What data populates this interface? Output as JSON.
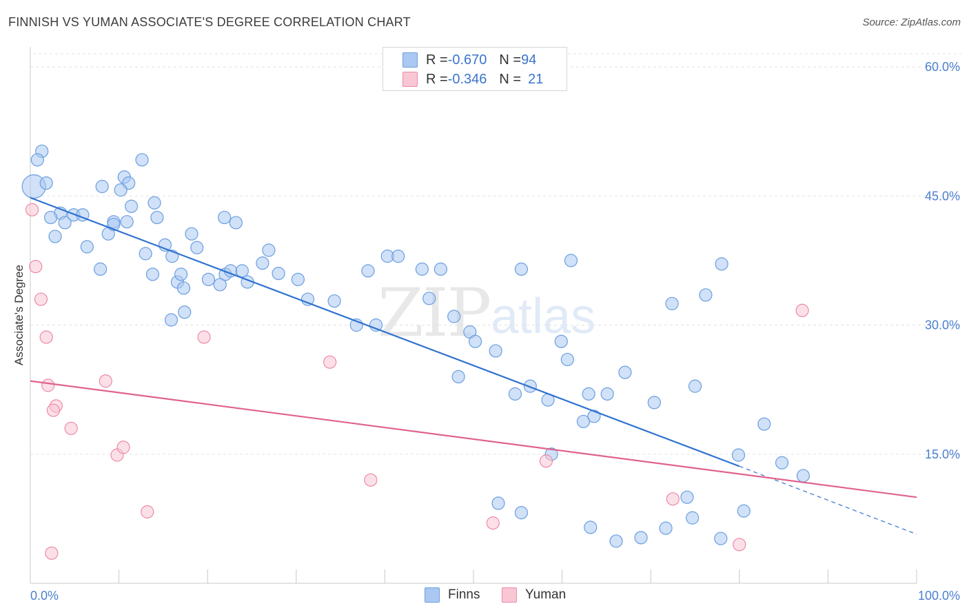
{
  "title": "FINNISH VS YUMAN ASSOCIATE'S DEGREE CORRELATION CHART",
  "source": "Source: ZipAtlas.com",
  "watermark": {
    "zip": "ZIP",
    "atlas": "atlas"
  },
  "legend": {
    "rows": [
      {
        "r_label": "R = ",
        "r_value": "-0.670",
        "n_label": "N = ",
        "n_value": "94",
        "color": "#aac8f2",
        "border": "#6a9edf"
      },
      {
        "r_label": "R = ",
        "r_value": "-0.346",
        "n_label": "N = ",
        "n_value": "21",
        "color": "#f9c6d4",
        "border": "#ec89a6"
      }
    ]
  },
  "bottom_legend": [
    {
      "label": "Finns",
      "color": "#aac8f2",
      "border": "#6a9edf"
    },
    {
      "label": "Yuman",
      "color": "#f9c6d4",
      "border": "#ec89a6"
    }
  ],
  "chart_data": {
    "type": "scatter",
    "title": "FINNISH VS YUMAN ASSOCIATE'S DEGREE CORRELATION CHART",
    "xlabel": "",
    "ylabel": "Associate's Degree",
    "xlim": [
      0,
      100
    ],
    "ylim": [
      0,
      60
    ],
    "x_tick_labels": [
      "0.0%",
      "100.0%"
    ],
    "y_ticks": [
      15,
      30,
      45,
      60
    ],
    "y_tick_labels": [
      "15.0%",
      "30.0%",
      "45.0%",
      "60.0%"
    ],
    "grid": true,
    "legend_position": "top-center",
    "series": [
      {
        "name": "Finns",
        "color": "#6a9edf",
        "fill": "#aac8f2",
        "points": [
          [
            0.4,
            46.1
          ],
          [
            1.3,
            50.2
          ],
          [
            0.8,
            49.2
          ],
          [
            1.8,
            46.5
          ],
          [
            3.4,
            43.0
          ],
          [
            2.3,
            42.5
          ],
          [
            3.9,
            41.9
          ],
          [
            2.8,
            40.3
          ],
          [
            4.9,
            42.8
          ],
          [
            5.9,
            42.8
          ],
          [
            6.4,
            39.1
          ],
          [
            8.1,
            46.1
          ],
          [
            8.8,
            40.6
          ],
          [
            7.9,
            36.5
          ],
          [
            9.4,
            42.0
          ],
          [
            10.9,
            42.0
          ],
          [
            11.4,
            43.8
          ],
          [
            9.4,
            41.7
          ],
          [
            10.6,
            47.2
          ],
          [
            11.1,
            46.5
          ],
          [
            10.2,
            45.7
          ],
          [
            12.6,
            49.2
          ],
          [
            14.0,
            44.2
          ],
          [
            13.0,
            38.3
          ],
          [
            14.3,
            42.5
          ],
          [
            13.8,
            35.9
          ],
          [
            15.2,
            39.3
          ],
          [
            16.0,
            38.0
          ],
          [
            16.6,
            35.0
          ],
          [
            17.0,
            35.9
          ],
          [
            17.4,
            31.5
          ],
          [
            15.9,
            30.6
          ],
          [
            18.2,
            40.6
          ],
          [
            18.8,
            39.0
          ],
          [
            17.3,
            34.3
          ],
          [
            20.1,
            35.3
          ],
          [
            21.4,
            34.7
          ],
          [
            22.0,
            35.9
          ],
          [
            22.6,
            36.3
          ],
          [
            21.9,
            42.5
          ],
          [
            23.2,
            41.9
          ],
          [
            23.9,
            36.3
          ],
          [
            24.5,
            35.0
          ],
          [
            26.2,
            37.2
          ],
          [
            26.9,
            38.7
          ],
          [
            28.0,
            36.0
          ],
          [
            30.2,
            35.3
          ],
          [
            31.3,
            33.0
          ],
          [
            34.3,
            32.8
          ],
          [
            36.8,
            30.0
          ],
          [
            39.0,
            30.0
          ],
          [
            40.3,
            38.0
          ],
          [
            38.1,
            36.3
          ],
          [
            41.5,
            38.0
          ],
          [
            44.2,
            36.5
          ],
          [
            45.0,
            33.1
          ],
          [
            46.3,
            36.5
          ],
          [
            47.8,
            31.0
          ],
          [
            49.6,
            29.2
          ],
          [
            52.5,
            27.0
          ],
          [
            54.7,
            22.0
          ],
          [
            56.4,
            22.9
          ],
          [
            58.4,
            21.3
          ],
          [
            59.9,
            28.1
          ],
          [
            60.6,
            26.0
          ],
          [
            62.4,
            18.8
          ],
          [
            63.6,
            19.4
          ],
          [
            63.0,
            22.0
          ],
          [
            65.1,
            22.0
          ],
          [
            67.1,
            24.5
          ],
          [
            70.4,
            21.0
          ],
          [
            72.4,
            32.5
          ],
          [
            75.0,
            22.9
          ],
          [
            76.2,
            33.5
          ],
          [
            78.0,
            37.1
          ],
          [
            79.9,
            14.9
          ],
          [
            82.8,
            18.5
          ],
          [
            84.8,
            14.0
          ],
          [
            50.2,
            28.1
          ],
          [
            48.3,
            24.0
          ],
          [
            52.8,
            9.3
          ],
          [
            55.4,
            8.2
          ],
          [
            58.8,
            15.0
          ],
          [
            63.2,
            6.5
          ],
          [
            66.1,
            4.9
          ],
          [
            68.9,
            5.3
          ],
          [
            71.7,
            6.4
          ],
          [
            74.7,
            7.6
          ],
          [
            74.1,
            10.0
          ],
          [
            77.9,
            5.2
          ],
          [
            80.5,
            8.4
          ],
          [
            87.2,
            12.5
          ],
          [
            55.4,
            36.5
          ],
          [
            61.0,
            37.5
          ]
        ],
        "trend": {
          "x": [
            0,
            80
          ],
          "y": [
            44.8,
            13.6
          ],
          "dashed_extension": {
            "x": [
              80,
              100
            ],
            "y": [
              13.6,
              5.7
            ]
          }
        }
      },
      {
        "name": "Yuman",
        "color": "#ec89a6",
        "fill": "#f9c6d4",
        "points": [
          [
            0.2,
            43.4
          ],
          [
            0.6,
            36.8
          ],
          [
            1.2,
            33.0
          ],
          [
            1.8,
            28.6
          ],
          [
            2.0,
            23.0
          ],
          [
            2.9,
            20.6
          ],
          [
            2.6,
            20.1
          ],
          [
            4.6,
            18.0
          ],
          [
            8.5,
            23.5
          ],
          [
            9.8,
            14.9
          ],
          [
            10.5,
            15.8
          ],
          [
            13.2,
            8.3
          ],
          [
            19.6,
            28.6
          ],
          [
            33.8,
            25.7
          ],
          [
            38.4,
            12.0
          ],
          [
            52.2,
            7.0
          ],
          [
            58.2,
            14.2
          ],
          [
            72.5,
            9.8
          ],
          [
            87.1,
            31.7
          ],
          [
            80.0,
            4.5
          ],
          [
            2.4,
            3.5
          ]
        ],
        "trend": {
          "x": [
            0,
            100
          ],
          "y": [
            23.5,
            10.0
          ]
        }
      }
    ]
  }
}
